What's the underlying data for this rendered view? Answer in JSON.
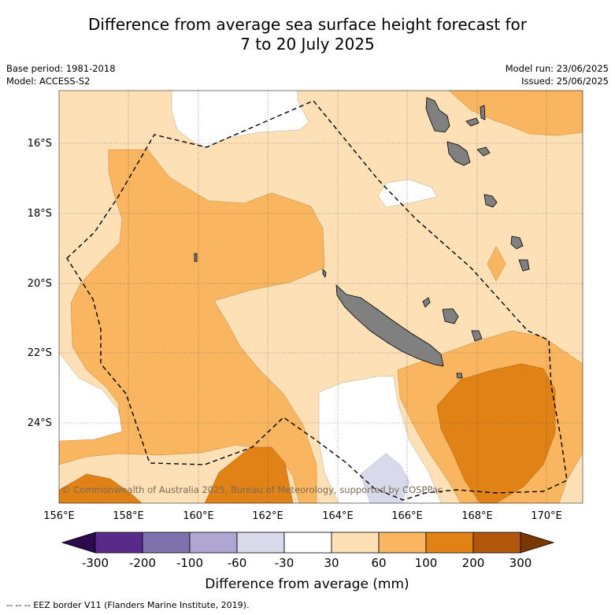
{
  "title": {
    "line1": "Difference from average sea surface height forecast for",
    "line2": "7 to 20 July 2025"
  },
  "meta_left": {
    "base_period": "Base period: 1981-2018",
    "model": "Model: ACCESS-S2"
  },
  "meta_right": {
    "model_run": "Model run: 23/06/2025",
    "issued": "Issued: 25/06/2025"
  },
  "map": {
    "lat_labels": [
      "16°S",
      "18°S",
      "20°S",
      "22°S",
      "24°S"
    ],
    "lon_labels": [
      "156°E",
      "158°E",
      "160°E",
      "162°E",
      "164°E",
      "166°E",
      "168°E",
      "170°E"
    ],
    "copyright": "© Commonwealth of Australia 2025, Bureau of Meteorology, supported by COSPPac",
    "land_color": "#808080",
    "eez_line_style": "dashed"
  },
  "colorbar": {
    "label": "Difference from average (mm)",
    "tick_labels": [
      "-300",
      "-200",
      "-100",
      "-60",
      "-30",
      "30",
      "60",
      "100",
      "200",
      "300"
    ],
    "colors": [
      "#2d0a4e",
      "#5a2a8a",
      "#7e72ad",
      "#afa7d1",
      "#d9d9ec",
      "#ffffff",
      "#fde0b5",
      "#f9b55f",
      "#e08216",
      "#b2580c",
      "#7a3704"
    ]
  },
  "footer": {
    "legend_text": "-- -- -- EEZ border V11 (Flanders Marine Institute, 2019)."
  }
}
